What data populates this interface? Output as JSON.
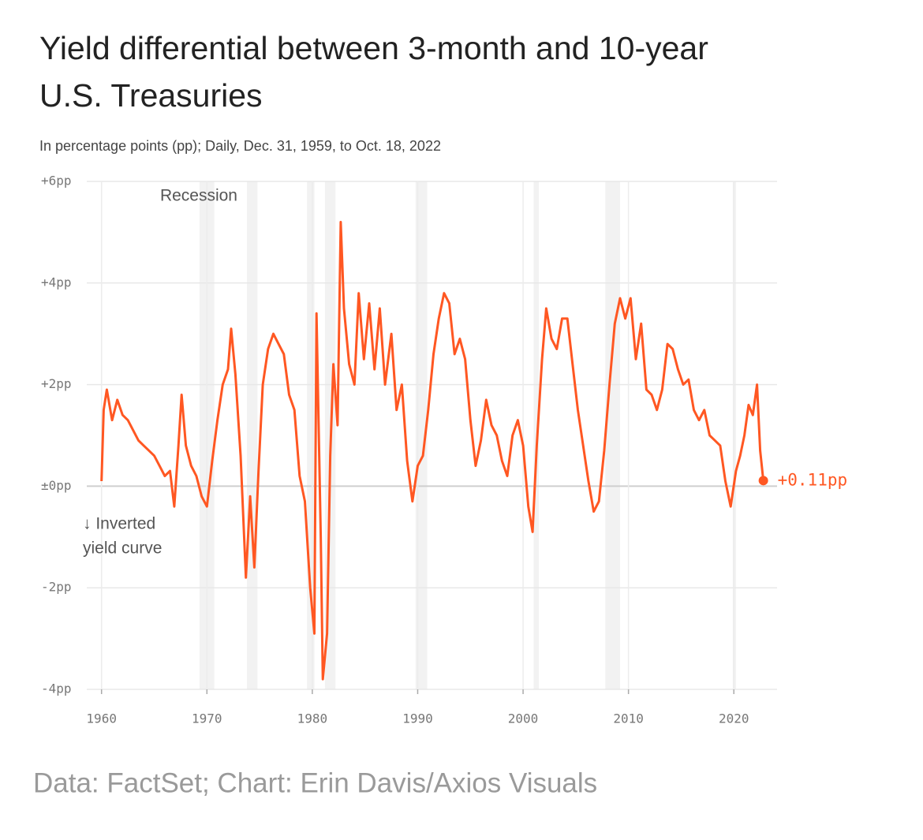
{
  "chart_data": {
    "type": "line",
    "title": [
      "Yield differential between 3-month and 10-year",
      "U.S. Treasuries"
    ],
    "subtitle": "In percentage points (pp); Daily, Dec. 31, 1959, to Oct. 18, 2022",
    "source": "Data: FactSet; Chart: Erin Davis/Axios Visuals",
    "recession_label": "Recession",
    "recessions": [
      [
        1969.3,
        1970.7
      ],
      [
        1973.8,
        1974.8
      ],
      [
        1979.5,
        1980.2
      ],
      [
        1981.2,
        1982.2
      ],
      [
        1989.8,
        1990.9
      ],
      [
        2001.0,
        2001.5
      ],
      [
        2007.8,
        2009.2
      ],
      [
        2019.9,
        2020.2
      ]
    ],
    "annotation": [
      "↓ Inverted",
      "yield curve"
    ],
    "xlim": [
      1958.6,
      2024.1
    ],
    "xticks": [
      1960,
      1970,
      1980,
      1990,
      2000,
      2010,
      2020
    ],
    "ylim": [
      -4,
      6
    ],
    "yticks": [
      {
        "value": -4,
        "label": "-4pp"
      },
      {
        "value": -2,
        "label": "-2pp"
      },
      {
        "value": 0,
        "label": "±0pp"
      },
      {
        "value": 2,
        "label": "+2pp"
      },
      {
        "value": 4,
        "label": "+4pp"
      },
      {
        "value": 6,
        "label": "+6pp"
      }
    ],
    "grid": true,
    "x": [
      1960.0,
      1960.2,
      1960.5,
      1961,
      1961.5,
      1962,
      1962.5,
      1963,
      1963.5,
      1964,
      1964.5,
      1965,
      1965.5,
      1966,
      1966.5,
      1966.9,
      1967.3,
      1967.6,
      1968,
      1968.5,
      1969,
      1969.5,
      1970,
      1970.5,
      1971,
      1971.5,
      1972,
      1972.3,
      1972.7,
      1973.2,
      1973.7,
      1974.1,
      1974.5,
      1974.9,
      1975.3,
      1975.8,
      1976.3,
      1976.8,
      1977.3,
      1977.8,
      1978.3,
      1978.8,
      1979.3,
      1979.8,
      1980.2,
      1980.4,
      1980.8,
      1981.0,
      1981.4,
      1981.7,
      1982.0,
      1982.4,
      1982.7,
      1983.0,
      1983.5,
      1984.0,
      1984.4,
      1984.9,
      1985.4,
      1985.9,
      1986.4,
      1986.9,
      1987.5,
      1988.0,
      1988.5,
      1989.0,
      1989.5,
      1990.0,
      1990.5,
      1991.0,
      1991.5,
      1992.0,
      1992.5,
      1993.0,
      1993.5,
      1994.0,
      1994.5,
      1995.0,
      1995.5,
      1996.0,
      1996.5,
      1997.0,
      1997.5,
      1998.0,
      1998.5,
      1999.0,
      1999.5,
      2000.0,
      2000.5,
      2000.9,
      2001.3,
      2001.8,
      2002.2,
      2002.7,
      2003.2,
      2003.7,
      2004.2,
      2004.7,
      2005.2,
      2005.7,
      2006.2,
      2006.7,
      2007.2,
      2007.7,
      2008.2,
      2008.7,
      2009.2,
      2009.7,
      2010.2,
      2010.7,
      2011.2,
      2011.7,
      2012.2,
      2012.7,
      2013.2,
      2013.7,
      2014.2,
      2014.7,
      2015.2,
      2015.7,
      2016.2,
      2016.7,
      2017.2,
      2017.7,
      2018.2,
      2018.7,
      2019.2,
      2019.7,
      2020.2,
      2020.6,
      2021.0,
      2021.4,
      2021.8,
      2022.2,
      2022.5,
      2022.8
    ],
    "series": [
      {
        "color": "#ff5722",
        "end_label": "+0.11pp",
        "values": [
          0.1,
          1.5,
          1.9,
          1.3,
          1.7,
          1.4,
          1.3,
          1.1,
          0.9,
          0.8,
          0.7,
          0.6,
          0.4,
          0.2,
          0.3,
          -0.4,
          0.8,
          1.8,
          0.8,
          0.4,
          0.2,
          -0.2,
          -0.4,
          0.5,
          1.3,
          2.0,
          2.3,
          3.1,
          2.2,
          0.6,
          -1.8,
          -0.2,
          -1.6,
          0.3,
          2.0,
          2.7,
          3.0,
          2.8,
          2.6,
          1.8,
          1.5,
          0.2,
          -0.3,
          -2.0,
          -2.9,
          3.4,
          -1.0,
          -3.8,
          -2.9,
          0.6,
          2.4,
          1.2,
          5.2,
          3.5,
          2.4,
          2.0,
          3.8,
          2.5,
          3.6,
          2.3,
          3.5,
          2.0,
          3.0,
          1.5,
          2.0,
          0.5,
          -0.3,
          0.4,
          0.6,
          1.5,
          2.6,
          3.3,
          3.8,
          3.6,
          2.6,
          2.9,
          2.5,
          1.3,
          0.4,
          0.9,
          1.7,
          1.2,
          1.0,
          0.5,
          0.2,
          1.0,
          1.3,
          0.8,
          -0.4,
          -0.9,
          0.8,
          2.5,
          3.5,
          2.9,
          2.7,
          3.3,
          3.3,
          2.4,
          1.5,
          0.8,
          0.1,
          -0.5,
          -0.3,
          0.7,
          2.0,
          3.2,
          3.7,
          3.3,
          3.7,
          2.5,
          3.2,
          1.9,
          1.8,
          1.5,
          1.9,
          2.8,
          2.7,
          2.3,
          2.0,
          2.1,
          1.5,
          1.3,
          1.5,
          1.0,
          0.9,
          0.8,
          0.1,
          -0.4,
          0.3,
          0.6,
          1.0,
          1.6,
          1.4,
          2.0,
          0.7,
          0.11
        ]
      }
    ]
  }
}
